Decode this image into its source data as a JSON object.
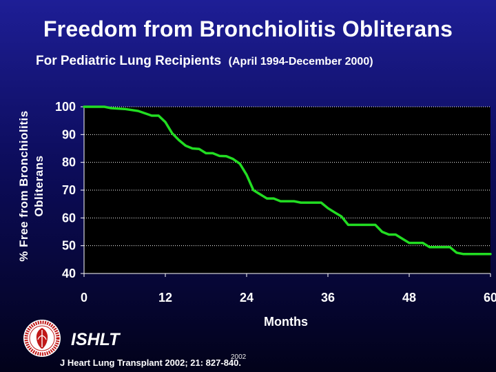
{
  "slide": {
    "title": "Freedom from Bronchiolitis Obliterans",
    "subtitle": "For Pediatric Lung Recipients",
    "subtitle_range": "(April 1994-December 2000)",
    "org": "ISHLT",
    "year": "2002",
    "citation": "J Heart Lung Transplant 2002; 21: 827-840."
  },
  "chart_data": {
    "type": "line",
    "ylabel_lines": [
      "% Free from Bronchiolitis",
      "Obliterans"
    ],
    "xlabel": "Months",
    "xlim": [
      0,
      60
    ],
    "ylim": [
      40,
      100
    ],
    "xticks": [
      0,
      12,
      24,
      36,
      48,
      60
    ],
    "yticks": [
      40,
      50,
      60,
      70,
      80,
      90,
      100
    ],
    "grid": "horizontal dotted",
    "colors": {
      "line": "#22dd22",
      "plot_bg": "#000000",
      "grid": "#ffffff",
      "text": "#ffffff"
    },
    "series": [
      {
        "x": [
          0,
          3,
          4,
          6,
          8,
          10,
          11,
          12,
          13,
          14,
          15,
          16,
          17,
          18,
          19,
          20,
          21,
          22,
          23,
          24,
          25,
          26,
          27,
          28,
          29,
          30,
          31,
          32,
          33,
          34,
          35,
          36,
          37,
          38,
          39,
          40,
          41,
          43,
          44,
          45,
          46,
          47,
          48,
          49,
          50,
          51,
          52,
          53,
          54,
          55,
          56,
          57,
          58,
          59,
          60
        ],
        "y": [
          100,
          100,
          99.5,
          99.2,
          98.5,
          96.8,
          96.8,
          94.5,
          90.5,
          88,
          86,
          85,
          84.8,
          83.3,
          83.3,
          82.3,
          82.2,
          81.2,
          79.5,
          75.5,
          70,
          68.5,
          67,
          67,
          66,
          66,
          66,
          65.5,
          65.5,
          65.5,
          65.5,
          63.5,
          62,
          60.5,
          57.5,
          57.5,
          57.5,
          57.5,
          55,
          54,
          54,
          52.5,
          51,
          51,
          51,
          49.5,
          49.5,
          49.5,
          49.5,
          47.5,
          47,
          47,
          47,
          47,
          47
        ]
      }
    ]
  }
}
